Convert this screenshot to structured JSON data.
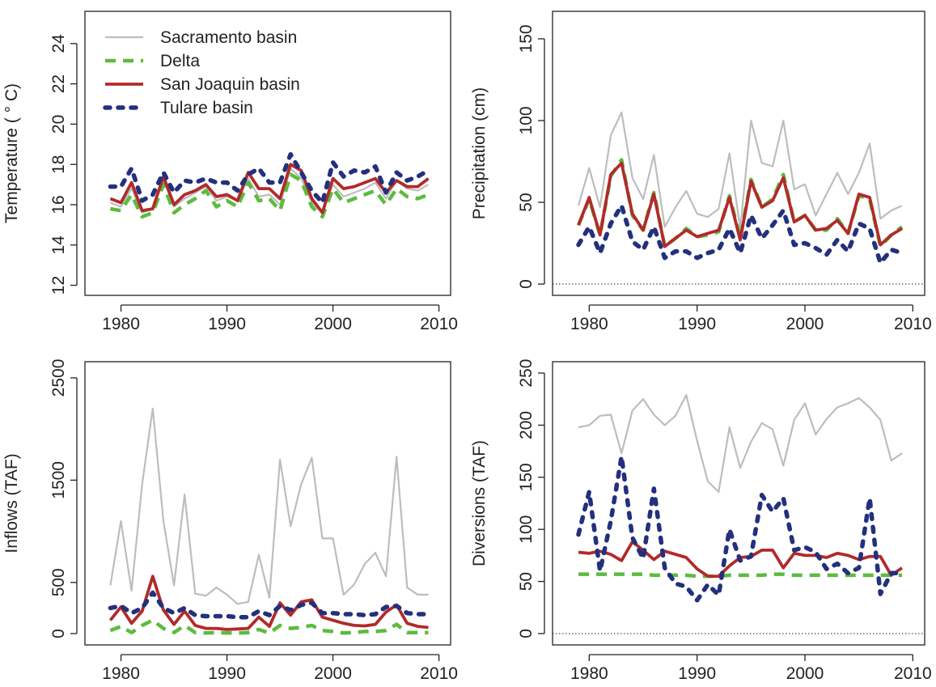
{
  "chart_data": [
    {
      "type": "line",
      "ylabel": "Temperature ( ° C)",
      "x": [
        1979,
        1980,
        1981,
        1982,
        1983,
        1984,
        1985,
        1986,
        1987,
        1988,
        1989,
        1990,
        1991,
        1992,
        1993,
        1994,
        1995,
        1996,
        1997,
        1998,
        1999,
        2000,
        2001,
        2002,
        2003,
        2004,
        2005,
        2006,
        2007,
        2008,
        2009
      ],
      "xlim": [
        1976.6,
        2011.1
      ],
      "xticks": [
        1980,
        1990,
        2000,
        2010
      ],
      "ylim": [
        11.5,
        25.6
      ],
      "yticks": [
        12,
        14,
        16,
        18,
        20,
        22,
        24
      ],
      "legend": "top-left",
      "series": [
        {
          "name": "Sacramento basin",
          "color": "#bdbdbd",
          "style": "thin",
          "values": [
            16.1,
            15.9,
            16.8,
            15.6,
            15.8,
            17.2,
            15.9,
            16.3,
            16.6,
            16.9,
            16.2,
            16.4,
            16.2,
            17.3,
            16.4,
            16.5,
            16.0,
            17.8,
            17.3,
            16.1,
            15.6,
            17.0,
            16.4,
            16.6,
            16.8,
            17.1,
            16.3,
            17.2,
            16.8,
            16.7,
            17.0
          ]
        },
        {
          "name": "Delta",
          "color": "#5dbb3f",
          "style": "dashed",
          "values": [
            15.8,
            15.7,
            16.5,
            15.4,
            15.6,
            17.0,
            15.6,
            16.0,
            16.3,
            16.7,
            15.9,
            16.2,
            15.9,
            17.1,
            16.2,
            16.3,
            15.7,
            17.5,
            17.2,
            15.9,
            15.4,
            16.8,
            16.1,
            16.3,
            16.5,
            16.7,
            16.0,
            16.8,
            16.4,
            16.3,
            16.5
          ]
        },
        {
          "name": "San Joaquin basin",
          "color": "#b22a2a",
          "style": "solid",
          "values": [
            16.3,
            16.1,
            17.1,
            15.7,
            15.8,
            17.4,
            16.0,
            16.5,
            16.7,
            17.0,
            16.4,
            16.5,
            16.2,
            17.6,
            16.8,
            16.8,
            16.3,
            18.0,
            17.7,
            16.3,
            15.6,
            17.3,
            16.8,
            16.9,
            17.1,
            17.3,
            16.6,
            17.2,
            16.9,
            16.9,
            17.3
          ]
        },
        {
          "name": "Tulare basin",
          "color": "#23307e",
          "style": "dotted",
          "values": [
            16.9,
            16.9,
            17.8,
            16.2,
            16.5,
            17.6,
            16.6,
            17.2,
            17.1,
            17.3,
            17.1,
            17.1,
            16.7,
            17.5,
            17.8,
            17.1,
            17.1,
            18.5,
            17.6,
            16.7,
            16.1,
            18.1,
            17.4,
            17.7,
            17.6,
            17.9,
            16.6,
            17.6,
            17.2,
            17.4,
            17.7
          ]
        }
      ]
    },
    {
      "type": "line",
      "ylabel": "Precipitation (cm)",
      "x": [
        1979,
        1980,
        1981,
        1982,
        1983,
        1984,
        1985,
        1986,
        1987,
        1988,
        1989,
        1990,
        1991,
        1992,
        1993,
        1994,
        1995,
        1996,
        1997,
        1998,
        1999,
        2000,
        2001,
        2002,
        2003,
        2004,
        2005,
        2006,
        2007,
        2008,
        2009
      ],
      "xlim": [
        1976.6,
        2011.1
      ],
      "xticks": [
        1980,
        1990,
        2000,
        2010
      ],
      "ylim": [
        -6.9,
        166.8
      ],
      "yticks": [
        0,
        50,
        100,
        150
      ],
      "hline": 0,
      "series": [
        {
          "color": "#bdbdbd",
          "style": "thin",
          "values": [
            48,
            71,
            47,
            91,
            105,
            65,
            52,
            79,
            35,
            47,
            57,
            43,
            41,
            46,
            80,
            34,
            100,
            74,
            72,
            100,
            58,
            61,
            42,
            55,
            68,
            55,
            68,
            86,
            40,
            45,
            48
          ]
        },
        {
          "color": "#5dbb3f",
          "style": "dashed",
          "values": [
            36,
            52,
            30,
            66,
            76,
            42,
            33,
            56,
            23,
            28,
            34,
            29,
            30,
            32,
            54,
            28,
            64,
            47,
            52,
            67,
            38,
            42,
            33,
            33,
            40,
            31,
            54,
            52,
            23,
            30,
            35
          ]
        },
        {
          "color": "#b22a2a",
          "style": "solid",
          "values": [
            36,
            53,
            30,
            67,
            74,
            43,
            33,
            55,
            23,
            28,
            33,
            29,
            31,
            33,
            53,
            27,
            63,
            47,
            51,
            65,
            38,
            42,
            33,
            34,
            39,
            31,
            55,
            53,
            24,
            30,
            34
          ]
        },
        {
          "color": "#23307e",
          "style": "dotted",
          "values": [
            24,
            35,
            19,
            37,
            48,
            26,
            21,
            35,
            16,
            20,
            20,
            16,
            19,
            21,
            34,
            19,
            42,
            28,
            36,
            45,
            24,
            25,
            22,
            18,
            27,
            20,
            37,
            34,
            13,
            21,
            19
          ]
        }
      ]
    },
    {
      "type": "line",
      "ylabel": "Inflows (TAF)",
      "x": [
        1979,
        1980,
        1981,
        1982,
        1983,
        1984,
        1985,
        1986,
        1987,
        1988,
        1989,
        1990,
        1991,
        1992,
        1993,
        1994,
        1995,
        1996,
        1997,
        1998,
        1999,
        2000,
        2001,
        2002,
        2003,
        2004,
        2005,
        2006,
        2007,
        2008,
        2009
      ],
      "xlim": [
        1976.6,
        2011.1
      ],
      "xticks": [
        1980,
        1990,
        2000,
        2010
      ],
      "ylim": [
        -111,
        2658
      ],
      "yticks": [
        0,
        500,
        1500,
        2500
      ],
      "series": [
        {
          "color": "#bdbdbd",
          "style": "thin",
          "values": [
            470,
            1100,
            420,
            1460,
            2200,
            1100,
            470,
            1360,
            390,
            370,
            450,
            380,
            290,
            310,
            770,
            350,
            1700,
            1050,
            1460,
            1720,
            930,
            930,
            380,
            480,
            680,
            790,
            560,
            1730,
            450,
            380,
            380
          ]
        },
        {
          "color": "#5dbb3f",
          "style": "dashed",
          "values": [
            30,
            70,
            10,
            80,
            130,
            50,
            10,
            80,
            10,
            5,
            10,
            5,
            5,
            10,
            40,
            5,
            80,
            50,
            60,
            80,
            30,
            20,
            5,
            10,
            20,
            20,
            30,
            90,
            10,
            10,
            10
          ]
        },
        {
          "color": "#b22a2a",
          "style": "solid",
          "values": [
            130,
            260,
            100,
            220,
            560,
            230,
            90,
            220,
            80,
            50,
            50,
            40,
            45,
            50,
            160,
            70,
            300,
            180,
            310,
            330,
            160,
            130,
            100,
            80,
            75,
            90,
            210,
            280,
            100,
            70,
            60
          ]
        },
        {
          "color": "#23307e",
          "style": "dotted",
          "values": [
            250,
            270,
            200,
            250,
            400,
            250,
            200,
            250,
            180,
            170,
            170,
            170,
            160,
            160,
            220,
            180,
            270,
            230,
            280,
            300,
            200,
            200,
            190,
            190,
            180,
            190,
            260,
            270,
            200,
            190,
            190
          ]
        }
      ]
    },
    {
      "type": "line",
      "ylabel": "Diversions (TAF)",
      "x": [
        1979,
        1980,
        1981,
        1982,
        1983,
        1984,
        1985,
        1986,
        1987,
        1988,
        1989,
        1990,
        1991,
        1992,
        1993,
        1994,
        1995,
        1996,
        1997,
        1998,
        1999,
        2000,
        2001,
        2002,
        2003,
        2004,
        2005,
        2006,
        2007,
        2008,
        2009
      ],
      "xlim": [
        1976.6,
        2011.1
      ],
      "xticks": [
        1980,
        1990,
        2000,
        2010
      ],
      "ylim": [
        -10.9,
        260.9
      ],
      "yticks": [
        0,
        50,
        100,
        150,
        200,
        250
      ],
      "hline": 0,
      "series": [
        {
          "color": "#bdbdbd",
          "style": "thin",
          "values": [
            198,
            200,
            209,
            210,
            173,
            214,
            225,
            210,
            200,
            209,
            229,
            185,
            146,
            136,
            198,
            159,
            184,
            202,
            196,
            161,
            205,
            221,
            191,
            206,
            217,
            221,
            226,
            217,
            205,
            166,
            173
          ]
        },
        {
          "color": "#5dbb3f",
          "style": "dashed",
          "values": [
            57,
            57,
            57,
            57,
            57,
            57,
            57,
            56,
            56,
            56,
            56,
            55,
            55,
            55,
            56,
            56,
            56,
            56,
            57,
            57,
            56,
            56,
            56,
            56,
            56,
            56,
            56,
            56,
            56,
            56,
            56
          ]
        },
        {
          "color": "#b22a2a",
          "style": "solid",
          "values": [
            78,
            77,
            79,
            76,
            70,
            88,
            80,
            71,
            79,
            76,
            73,
            62,
            55,
            55,
            65,
            73,
            74,
            80,
            80,
            63,
            77,
            75,
            75,
            73,
            77,
            75,
            71,
            74,
            74,
            56,
            63
          ]
        },
        {
          "color": "#23307e",
          "style": "dotted",
          "values": [
            95,
            136,
            60,
            108,
            170,
            92,
            72,
            139,
            63,
            48,
            45,
            32,
            47,
            37,
            100,
            70,
            74,
            133,
            117,
            130,
            80,
            83,
            78,
            62,
            67,
            58,
            63,
            130,
            38,
            58,
            58
          ]
        }
      ]
    }
  ]
}
